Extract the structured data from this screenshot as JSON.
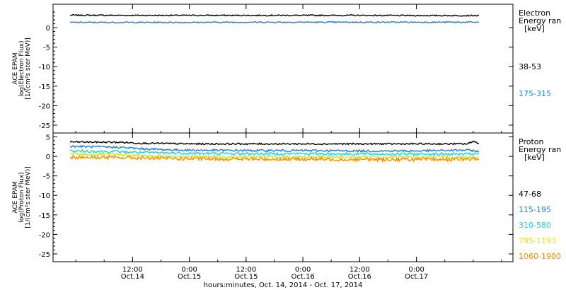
{
  "chart_data": [
    {
      "type": "line",
      "panel": "electron",
      "ylabel": [
        "ACE EPAM",
        "log(Electron Flux)",
        "[1/(cm²s ster MeV)]"
      ],
      "ylim": [
        -27,
        6
      ],
      "yticks": [
        0,
        -5,
        -10,
        -15,
        -20,
        -25
      ],
      "xlim": [
        -0.2,
        3.85
      ],
      "legend_title": [
        "Electron",
        "Energy ran",
        "[keV]"
      ],
      "legend_placement": "right",
      "series": [
        {
          "name": "38-53",
          "color": "#000000",
          "x": [
            -0.05,
            0.5,
            1.0,
            1.5,
            2.0,
            2.5,
            3.0,
            3.55
          ],
          "y": [
            3.2,
            3.15,
            3.15,
            3.15,
            3.15,
            3.15,
            3.1,
            3.1
          ]
        },
        {
          "name": "175-315",
          "color": "#1f7fd6",
          "x": [
            -0.05,
            0.5,
            1.0,
            1.5,
            2.0,
            2.5,
            3.0,
            3.55
          ],
          "y": [
            1.35,
            1.35,
            1.35,
            1.4,
            1.4,
            1.4,
            1.4,
            1.4
          ]
        }
      ]
    },
    {
      "type": "line",
      "panel": "proton",
      "ylabel": [
        "ACE EPAM",
        "log(Proton Flux)",
        "[1/(cm²s ster MeV)]"
      ],
      "ylim": [
        -27,
        6
      ],
      "yticks": [
        5,
        0,
        -5,
        -10,
        -15,
        -20,
        -25
      ],
      "xlim": [
        -0.2,
        3.85
      ],
      "legend_title": [
        "Proton",
        "Energy ran",
        "[keV]"
      ],
      "legend_placement": "right",
      "series": [
        {
          "name": "47-68",
          "color": "#000000",
          "x": [
            -0.05,
            0.4,
            0.55,
            0.8,
            1.0,
            1.5,
            2.0,
            2.5,
            3.0,
            3.45,
            3.5,
            3.55
          ],
          "y": [
            3.7,
            3.6,
            3.4,
            3.3,
            3.2,
            3.2,
            3.2,
            3.2,
            3.2,
            3.2,
            3.9,
            3.3
          ]
        },
        {
          "name": "115-195",
          "color": "#1f7fd6",
          "x": [
            -0.05,
            0.4,
            0.55,
            0.8,
            1.0,
            1.5,
            2.0,
            2.5,
            3.0,
            3.45,
            3.55
          ],
          "y": [
            2.6,
            2.3,
            2.0,
            1.7,
            1.6,
            1.5,
            1.5,
            1.4,
            1.4,
            1.6,
            1.3
          ]
        },
        {
          "name": "310-580",
          "color": "#22d3d3",
          "x": [
            -0.05,
            0.4,
            0.55,
            0.8,
            1.0,
            1.5,
            2.0,
            2.5,
            3.0,
            3.55
          ],
          "y": [
            1.4,
            1.2,
            1.0,
            0.9,
            0.8,
            0.7,
            0.7,
            0.6,
            0.6,
            0.6
          ]
        },
        {
          "name": "795-1193",
          "color": "#e0e020",
          "x": [
            -0.05,
            0.4,
            0.55,
            0.8,
            1.0,
            1.5,
            2.0,
            2.5,
            3.0,
            3.55
          ],
          "y": [
            0.6,
            0.4,
            0.2,
            0.1,
            0.0,
            -0.1,
            -0.1,
            -0.2,
            -0.2,
            -0.2
          ]
        },
        {
          "name": "1060-1900",
          "color": "#ff8c00",
          "x": [
            -0.05,
            0.4,
            0.55,
            0.8,
            1.0,
            1.5,
            2.0,
            2.5,
            3.0,
            3.55
          ],
          "y": [
            -0.2,
            -0.3,
            -0.4,
            -0.5,
            -0.6,
            -0.7,
            -0.7,
            -0.8,
            -0.8,
            -0.7
          ]
        }
      ]
    }
  ],
  "x_axis": {
    "ticks": [
      {
        "x": 0.5,
        "time": "12:00",
        "date": "Oct.14"
      },
      {
        "x": 1.0,
        "time": "0:00",
        "date": "Oct.15"
      },
      {
        "x": 1.5,
        "time": "12:00",
        "date": "Oct.15"
      },
      {
        "x": 2.0,
        "time": "0:00",
        "date": "Oct.16"
      },
      {
        "x": 2.5,
        "time": "12:00",
        "date": "Oct.16"
      },
      {
        "x": 3.0,
        "time": "0:00",
        "date": "Oct.17"
      }
    ],
    "xlabel": "hours:minutes, Oct. 14, 2014 - Oct. 17, 2014"
  }
}
